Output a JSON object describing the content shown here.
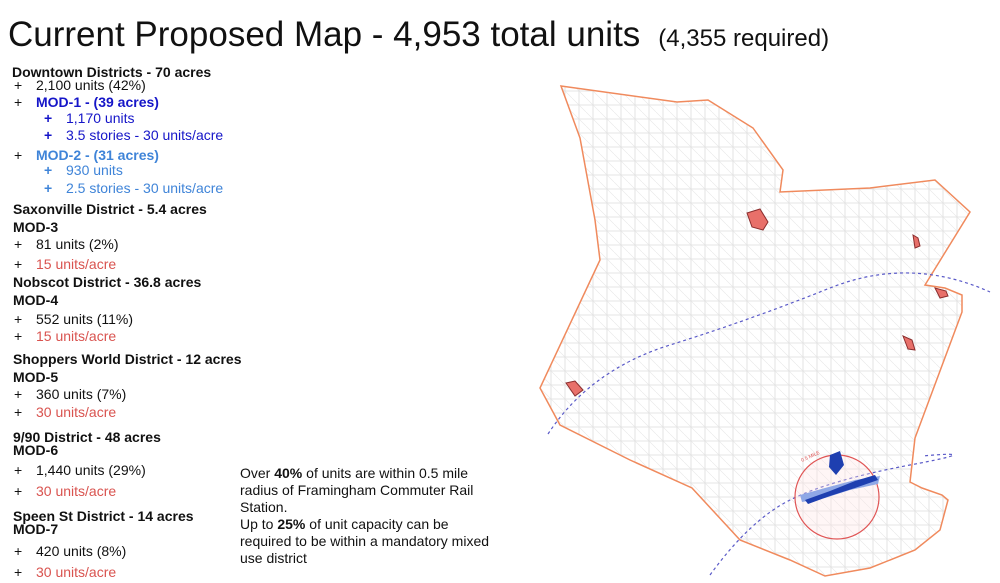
{
  "title": {
    "main": "Current Proposed Map - 4,953 total units",
    "sub": "(4,355 required)"
  },
  "downtown": {
    "heading": "Downtown Districts - 70 acres",
    "units": "2,100 units (42%)",
    "mod1": {
      "heading": "MOD-1 - (39 acres)",
      "units": "1,170 units",
      "density": "3.5 stories - 30 units/acre"
    },
    "mod2": {
      "heading": "MOD-2 - (31 acres)",
      "units": "930 units",
      "density": "2.5 stories - 30 units/acre"
    }
  },
  "districts": [
    {
      "heading": "Saxonville District - 5.4 acres",
      "mod": "MOD-3",
      "units": "81 units (2%)",
      "density": "15 units/acre"
    },
    {
      "heading": "Nobscot District - 36.8 acres",
      "mod": "MOD-4",
      "units": "552 units (11%)",
      "density": "15 units/acre"
    },
    {
      "heading": "Shoppers World District - 12 acres",
      "mod": "MOD-5",
      "units": "360 units (7%)",
      "density": "30 units/acre"
    },
    {
      "heading": "9/90 District - 48 acres",
      "mod": "MOD-6",
      "units": "1,440 units (29%)",
      "density": "30 units/acre"
    },
    {
      "heading": "Speen St District - 14 acres",
      "mod": "MOD-7",
      "units": "420 units (8%)",
      "density": "30 units/acre"
    }
  ],
  "plus": "+",
  "note": {
    "p1_pre": "Over ",
    "p1_bold": "40%",
    "p1_post": " of units are within 0.5 mile radius of Framingham Commuter Rail Station.",
    "p2_pre": "Up to ",
    "p2_bold": "25%",
    "p2_post": " of unit capacity can be required to be within a mandatory mixed use district"
  },
  "map": {
    "radius_label": "0.5 MILE",
    "colors": {
      "boundary": "#f08a5d",
      "district_fill": "#e8706a",
      "mod1": "#1e3fb0",
      "mod2": "#8fa8e6",
      "rail": "#5a5ac8",
      "radius": "#e05555",
      "streets": "#d9d9d9"
    }
  }
}
